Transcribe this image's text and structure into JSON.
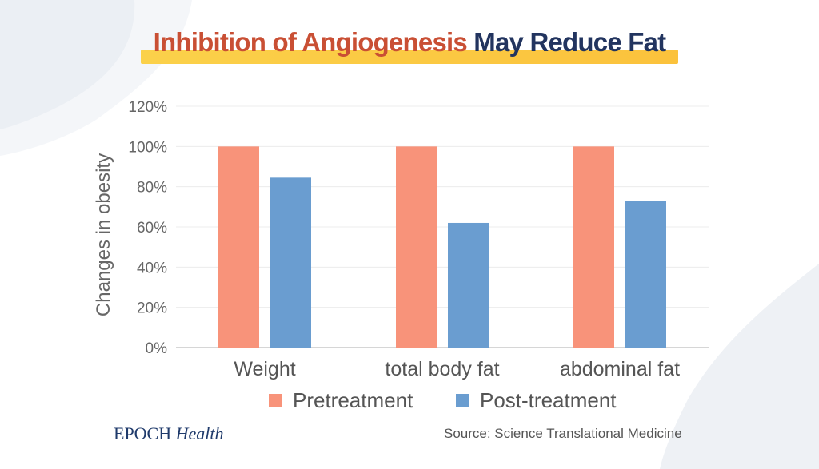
{
  "title": {
    "part1": "Inhibition of Angiogenesis",
    "part2": "May Reduce Fat"
  },
  "colors": {
    "title_part1": "#c94f34",
    "title_part2": "#22345f",
    "pretreatment": "#f8937a",
    "post_treatment": "#6a9dd0",
    "highlight_bar": "#fbcb44"
  },
  "chart_data": {
    "type": "bar",
    "categories": [
      "Weight",
      "total body fat",
      "abdominal fat"
    ],
    "series": [
      {
        "name": "Pretreatment",
        "values": [
          100,
          100,
          100
        ],
        "color": "#f8937a"
      },
      {
        "name": "Post-treatment",
        "values": [
          84.5,
          62,
          73
        ],
        "color": "#6a9dd0"
      }
    ],
    "ylabel": "Changes in obesity",
    "yticks": [
      "0%",
      "20%",
      "40%",
      "60%",
      "80%",
      "100%",
      "120%"
    ],
    "ylim": [
      0,
      120
    ],
    "grid": true,
    "legend": "bottom"
  },
  "footer": {
    "brand_main": "EPOCH",
    "brand_sub": "Health",
    "source": "Source: Science Translational Medicine"
  }
}
